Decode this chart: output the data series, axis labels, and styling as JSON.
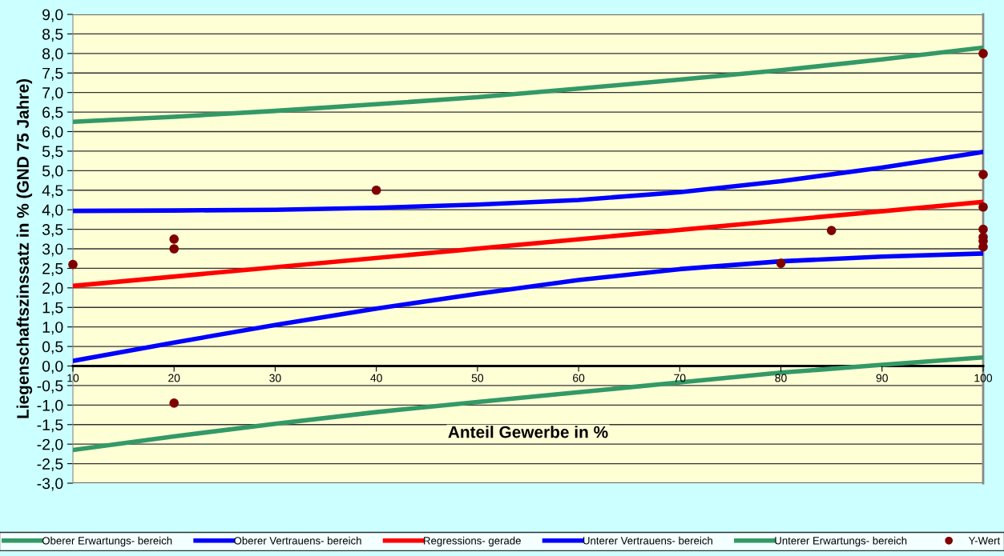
{
  "chart_data": {
    "type": "line",
    "xlabel": "Anteil Gewerbe in %",
    "ylabel": "Liegenschaftszinssatz in % (GND 75 Jahre)",
    "xlim": [
      10,
      100
    ],
    "xticks": [
      10,
      20,
      30,
      40,
      50,
      60,
      70,
      80,
      90,
      100
    ],
    "ylim": [
      -3,
      9
    ],
    "yticks": [
      {
        "value": -3,
        "label": "-3,0"
      },
      {
        "value": -2.5,
        "label": "-2,5"
      },
      {
        "value": -2,
        "label": "-2,0"
      },
      {
        "value": -1.5,
        "label": "-1,5"
      },
      {
        "value": -1,
        "label": "-1,0"
      },
      {
        "value": -0.5,
        "label": "-0,5"
      },
      {
        "value": 0,
        "label": "0,0"
      },
      {
        "value": 0.5,
        "label": "0,5"
      },
      {
        "value": 1,
        "label": "1,0"
      },
      {
        "value": 1.5,
        "label": "1,5"
      },
      {
        "value": 2,
        "label": "2,0"
      },
      {
        "value": 2.5,
        "label": "2,5"
      },
      {
        "value": 3,
        "label": "3,0"
      },
      {
        "value": 3.5,
        "label": "3,5"
      },
      {
        "value": 4,
        "label": "4,0"
      },
      {
        "value": 4.5,
        "label": "4,5"
      },
      {
        "value": 5,
        "label": "5,0"
      },
      {
        "value": 5.5,
        "label": "5,5"
      },
      {
        "value": 6,
        "label": "6,0"
      },
      {
        "value": 6.5,
        "label": "6,5"
      },
      {
        "value": 7,
        "label": "7,0"
      },
      {
        "value": 7.5,
        "label": "7,5"
      },
      {
        "value": 8,
        "label": "8,0"
      },
      {
        "value": 8.5,
        "label": "8,5"
      },
      {
        "value": 9,
        "label": "9,0"
      }
    ],
    "grid": "y",
    "legend": "bottom",
    "marker": "none",
    "line_style": "solid",
    "series": [
      {
        "name": "Oberer Erwartungs- bereich",
        "color": "#339966",
        "x": [
          10,
          20,
          30,
          40,
          50,
          60,
          70,
          80,
          90,
          100
        ],
        "values": [
          6.25,
          6.38,
          6.53,
          6.7,
          6.88,
          7.1,
          7.33,
          7.57,
          7.85,
          8.15
        ]
      },
      {
        "name": "Oberer Vertrauens- bereich",
        "color": "#0000ff",
        "x": [
          10,
          20,
          30,
          40,
          50,
          60,
          70,
          80,
          90,
          100
        ],
        "values": [
          3.97,
          3.98,
          4.0,
          4.05,
          4.13,
          4.25,
          4.45,
          4.73,
          5.08,
          5.48
        ]
      },
      {
        "name": "Regressions- gerade",
        "color": "#ff0000",
        "x": [
          10,
          100
        ],
        "values": [
          2.05,
          4.2
        ]
      },
      {
        "name": "Unterer Vertrauens- bereich",
        "color": "#0000ff",
        "x": [
          10,
          20,
          30,
          40,
          50,
          60,
          70,
          80,
          90,
          100
        ],
        "values": [
          0.13,
          0.6,
          1.05,
          1.47,
          1.85,
          2.2,
          2.48,
          2.68,
          2.8,
          2.88
        ]
      },
      {
        "name": "Unterer Erwartungs- bereich",
        "color": "#339966",
        "x": [
          10,
          20,
          30,
          40,
          50,
          60,
          70,
          80,
          90,
          100
        ],
        "values": [
          -2.15,
          -1.8,
          -1.48,
          -1.18,
          -0.92,
          -0.67,
          -0.42,
          -0.17,
          0.03,
          0.22
        ]
      },
      {
        "name": "Y-Wert",
        "type": "scatter",
        "marker": "circle",
        "color": "#800000",
        "x": [
          10,
          20,
          20,
          20,
          40,
          80,
          85,
          100,
          100,
          100,
          100,
          100,
          100,
          100
        ],
        "values": [
          2.6,
          3.25,
          3.0,
          -0.95,
          4.5,
          2.63,
          3.47,
          8.0,
          4.9,
          4.07,
          3.5,
          3.3,
          3.2,
          3.05
        ]
      }
    ]
  }
}
